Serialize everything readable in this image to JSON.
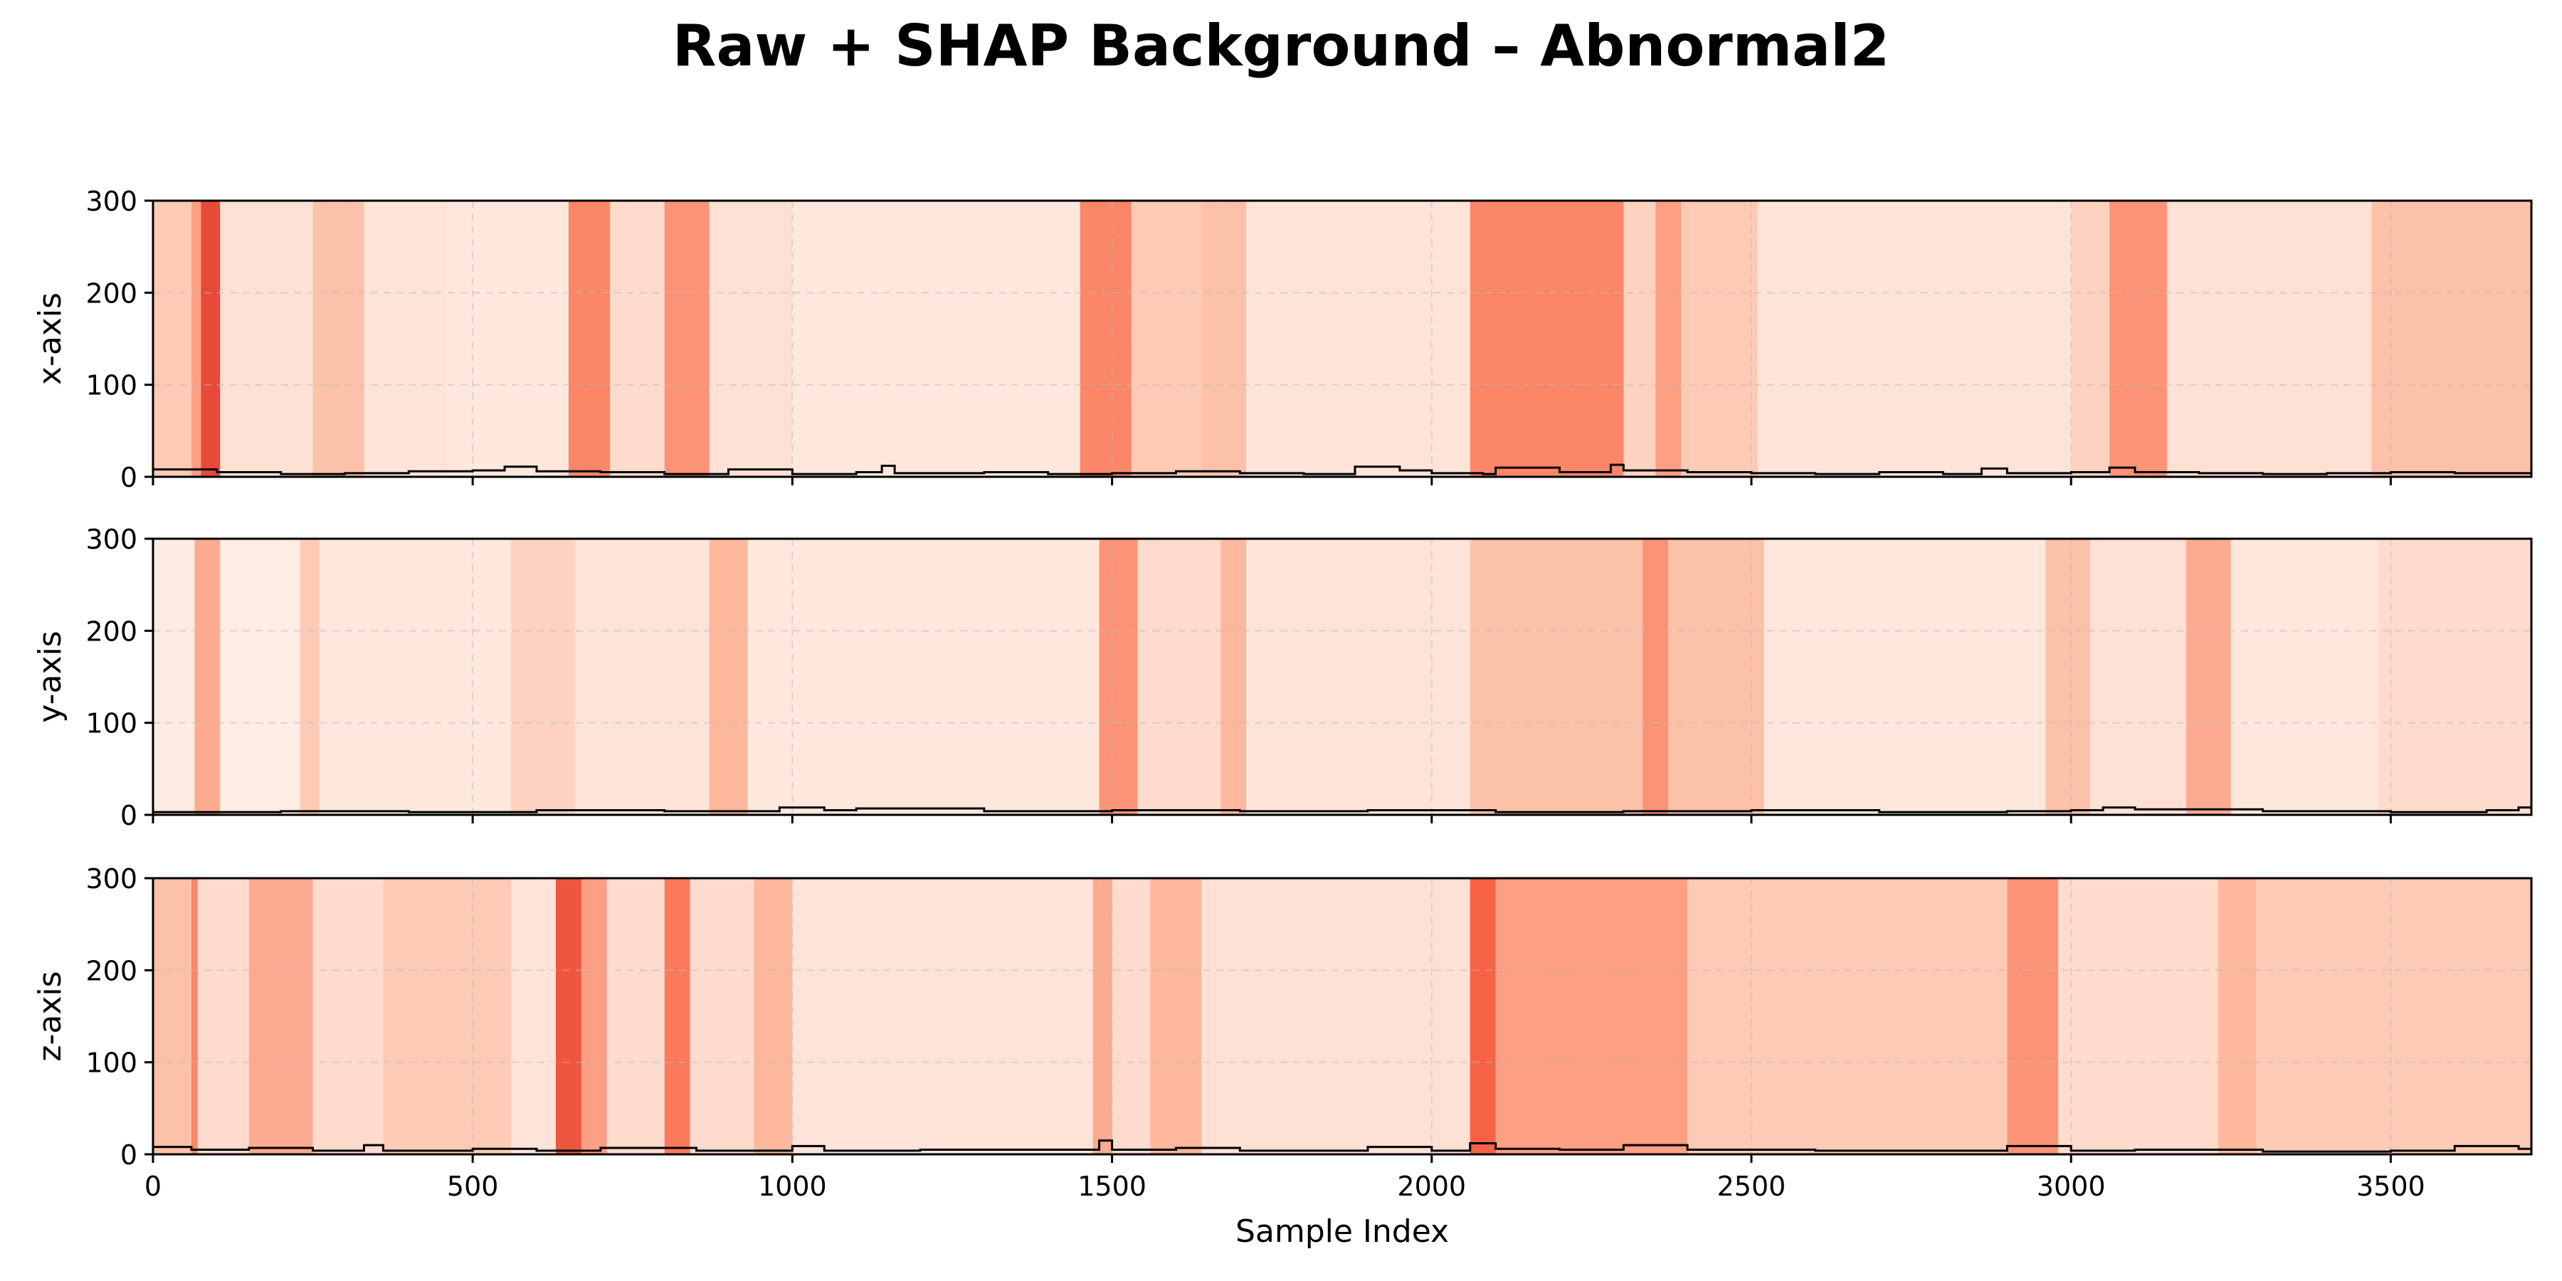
{
  "figure": {
    "title": "Raw + SHAP Background – Abnormal2",
    "xlabel": "Sample Index"
  },
  "chart_data": [
    {
      "type": "line",
      "ylabel": "x-axis",
      "xlim": [
        0,
        3720
      ],
      "ylim": [
        0,
        300
      ],
      "x_ticks": [
        0,
        500,
        1000,
        1500,
        2000,
        2500,
        3000,
        3500
      ],
      "y_ticks": [
        0,
        100,
        200,
        300
      ],
      "grid": true,
      "background": "SHAP intensity bands (Reds colormap)",
      "heat_bands": [
        {
          "x0": 0,
          "x1": 60,
          "v": 0.25
        },
        {
          "x0": 60,
          "x1": 75,
          "v": 0.45
        },
        {
          "x0": 75,
          "x1": 105,
          "v": 0.8
        },
        {
          "x0": 105,
          "x1": 250,
          "v": 0.12
        },
        {
          "x0": 250,
          "x1": 330,
          "v": 0.3
        },
        {
          "x0": 330,
          "x1": 460,
          "v": 0.1
        },
        {
          "x0": 460,
          "x1": 650,
          "v": 0.08
        },
        {
          "x0": 650,
          "x1": 715,
          "v": 0.55
        },
        {
          "x0": 715,
          "x1": 800,
          "v": 0.15
        },
        {
          "x0": 800,
          "x1": 870,
          "v": 0.5
        },
        {
          "x0": 870,
          "x1": 1000,
          "v": 0.12
        },
        {
          "x0": 1000,
          "x1": 1450,
          "v": 0.08
        },
        {
          "x0": 1450,
          "x1": 1530,
          "v": 0.55
        },
        {
          "x0": 1530,
          "x1": 1640,
          "v": 0.25
        },
        {
          "x0": 1640,
          "x1": 1710,
          "v": 0.3
        },
        {
          "x0": 1710,
          "x1": 2060,
          "v": 0.1
        },
        {
          "x0": 2060,
          "x1": 2300,
          "v": 0.55
        },
        {
          "x0": 2300,
          "x1": 2350,
          "v": 0.2
        },
        {
          "x0": 2350,
          "x1": 2390,
          "v": 0.45
        },
        {
          "x0": 2390,
          "x1": 2510,
          "v": 0.25
        },
        {
          "x0": 2510,
          "x1": 3000,
          "v": 0.1
        },
        {
          "x0": 3000,
          "x1": 3060,
          "v": 0.2
        },
        {
          "x0": 3060,
          "x1": 3150,
          "v": 0.5
        },
        {
          "x0": 3150,
          "x1": 3470,
          "v": 0.12
        },
        {
          "x0": 3470,
          "x1": 3720,
          "v": 0.3
        }
      ],
      "series": [
        {
          "color": "#000000",
          "x": [
            0,
            100,
            200,
            300,
            400,
            500,
            550,
            600,
            700,
            800,
            900,
            1000,
            1100,
            1140,
            1160,
            1300,
            1400,
            1500,
            1600,
            1700,
            1800,
            1880,
            1950,
            2000,
            2080,
            2100,
            2200,
            2280,
            2300,
            2400,
            2500,
            2600,
            2700,
            2800,
            2860,
            2900,
            3000,
            3060,
            3100,
            3200,
            3300,
            3400,
            3500,
            3600,
            3720
          ],
          "y": [
            8,
            5,
            3,
            4,
            6,
            7,
            11,
            6,
            5,
            3,
            8,
            3,
            5,
            12,
            4,
            5,
            3,
            4,
            6,
            4,
            3,
            11,
            7,
            4,
            3,
            10,
            5,
            13,
            7,
            5,
            4,
            3,
            5,
            3,
            9,
            4,
            5,
            10,
            5,
            4,
            3,
            4,
            5,
            4,
            3
          ]
        }
      ]
    },
    {
      "type": "line",
      "ylabel": "y-axis",
      "xlim": [
        0,
        3720
      ],
      "ylim": [
        0,
        300
      ],
      "x_ticks": [
        0,
        500,
        1000,
        1500,
        2000,
        2500,
        3000,
        3500
      ],
      "y_ticks": [
        0,
        100,
        200,
        300
      ],
      "grid": true,
      "background": "SHAP intensity bands (Reds colormap)",
      "heat_bands": [
        {
          "x0": 0,
          "x1": 65,
          "v": 0.06
        },
        {
          "x0": 65,
          "x1": 105,
          "v": 0.4
        },
        {
          "x0": 105,
          "x1": 230,
          "v": 0.05
        },
        {
          "x0": 230,
          "x1": 260,
          "v": 0.25
        },
        {
          "x0": 260,
          "x1": 560,
          "v": 0.08
        },
        {
          "x0": 560,
          "x1": 660,
          "v": 0.2
        },
        {
          "x0": 660,
          "x1": 870,
          "v": 0.1
        },
        {
          "x0": 870,
          "x1": 930,
          "v": 0.35
        },
        {
          "x0": 930,
          "x1": 1480,
          "v": 0.08
        },
        {
          "x0": 1480,
          "x1": 1540,
          "v": 0.5
        },
        {
          "x0": 1540,
          "x1": 1670,
          "v": 0.15
        },
        {
          "x0": 1670,
          "x1": 1710,
          "v": 0.35
        },
        {
          "x0": 1710,
          "x1": 2060,
          "v": 0.1
        },
        {
          "x0": 2060,
          "x1": 2330,
          "v": 0.3
        },
        {
          "x0": 2330,
          "x1": 2370,
          "v": 0.5
        },
        {
          "x0": 2370,
          "x1": 2520,
          "v": 0.3
        },
        {
          "x0": 2520,
          "x1": 2960,
          "v": 0.08
        },
        {
          "x0": 2960,
          "x1": 3030,
          "v": 0.3
        },
        {
          "x0": 3030,
          "x1": 3180,
          "v": 0.12
        },
        {
          "x0": 3180,
          "x1": 3250,
          "v": 0.4
        },
        {
          "x0": 3250,
          "x1": 3480,
          "v": 0.08
        },
        {
          "x0": 3480,
          "x1": 3720,
          "v": 0.15
        }
      ],
      "series": [
        {
          "color": "#000000",
          "x": [
            0,
            200,
            400,
            600,
            800,
            980,
            1050,
            1100,
            1300,
            1500,
            1700,
            1900,
            2100,
            2300,
            2500,
            2700,
            2900,
            3000,
            3050,
            3100,
            3300,
            3500,
            3650,
            3700,
            3720
          ],
          "y": [
            3,
            4,
            3,
            5,
            4,
            8,
            5,
            7,
            4,
            5,
            4,
            5,
            3,
            4,
            5,
            3,
            4,
            5,
            8,
            6,
            4,
            3,
            5,
            8,
            3
          ]
        }
      ]
    },
    {
      "type": "line",
      "ylabel": "z-axis",
      "xlim": [
        0,
        3720
      ],
      "ylim": [
        0,
        300
      ],
      "x_ticks": [
        0,
        500,
        1000,
        1500,
        2000,
        2500,
        3000,
        3500
      ],
      "y_ticks": [
        0,
        100,
        200,
        300
      ],
      "grid": true,
      "background": "SHAP intensity bands (Reds colormap)",
      "heat_bands": [
        {
          "x0": 0,
          "x1": 60,
          "v": 0.3
        },
        {
          "x0": 60,
          "x1": 70,
          "v": 0.55
        },
        {
          "x0": 70,
          "x1": 150,
          "v": 0.15
        },
        {
          "x0": 150,
          "x1": 250,
          "v": 0.4
        },
        {
          "x0": 250,
          "x1": 360,
          "v": 0.15
        },
        {
          "x0": 360,
          "x1": 560,
          "v": 0.25
        },
        {
          "x0": 560,
          "x1": 630,
          "v": 0.1
        },
        {
          "x0": 630,
          "x1": 670,
          "v": 0.75
        },
        {
          "x0": 670,
          "x1": 710,
          "v": 0.45
        },
        {
          "x0": 710,
          "x1": 800,
          "v": 0.15
        },
        {
          "x0": 800,
          "x1": 840,
          "v": 0.6
        },
        {
          "x0": 840,
          "x1": 940,
          "v": 0.15
        },
        {
          "x0": 940,
          "x1": 1000,
          "v": 0.35
        },
        {
          "x0": 1000,
          "x1": 1470,
          "v": 0.1
        },
        {
          "x0": 1470,
          "x1": 1500,
          "v": 0.4
        },
        {
          "x0": 1500,
          "x1": 1560,
          "v": 0.15
        },
        {
          "x0": 1560,
          "x1": 1640,
          "v": 0.35
        },
        {
          "x0": 1640,
          "x1": 2060,
          "v": 0.12
        },
        {
          "x0": 2060,
          "x1": 2100,
          "v": 0.7
        },
        {
          "x0": 2100,
          "x1": 2400,
          "v": 0.45
        },
        {
          "x0": 2400,
          "x1": 2900,
          "v": 0.25
        },
        {
          "x0": 2900,
          "x1": 2980,
          "v": 0.5
        },
        {
          "x0": 2980,
          "x1": 3230,
          "v": 0.15
        },
        {
          "x0": 3230,
          "x1": 3290,
          "v": 0.35
        },
        {
          "x0": 3290,
          "x1": 3720,
          "v": 0.25
        }
      ],
      "series": [
        {
          "color": "#000000",
          "x": [
            0,
            60,
            150,
            250,
            330,
            360,
            500,
            600,
            700,
            850,
            1000,
            1050,
            1200,
            1480,
            1500,
            1600,
            1700,
            1900,
            2000,
            2060,
            2100,
            2200,
            2300,
            2400,
            2600,
            2900,
            3000,
            3100,
            3300,
            3500,
            3600,
            3700,
            3720
          ],
          "y": [
            8,
            5,
            7,
            4,
            10,
            4,
            6,
            4,
            7,
            4,
            9,
            4,
            5,
            15,
            5,
            7,
            4,
            8,
            4,
            12,
            6,
            5,
            10,
            5,
            4,
            9,
            4,
            5,
            3,
            4,
            9,
            6,
            3
          ]
        }
      ]
    }
  ]
}
